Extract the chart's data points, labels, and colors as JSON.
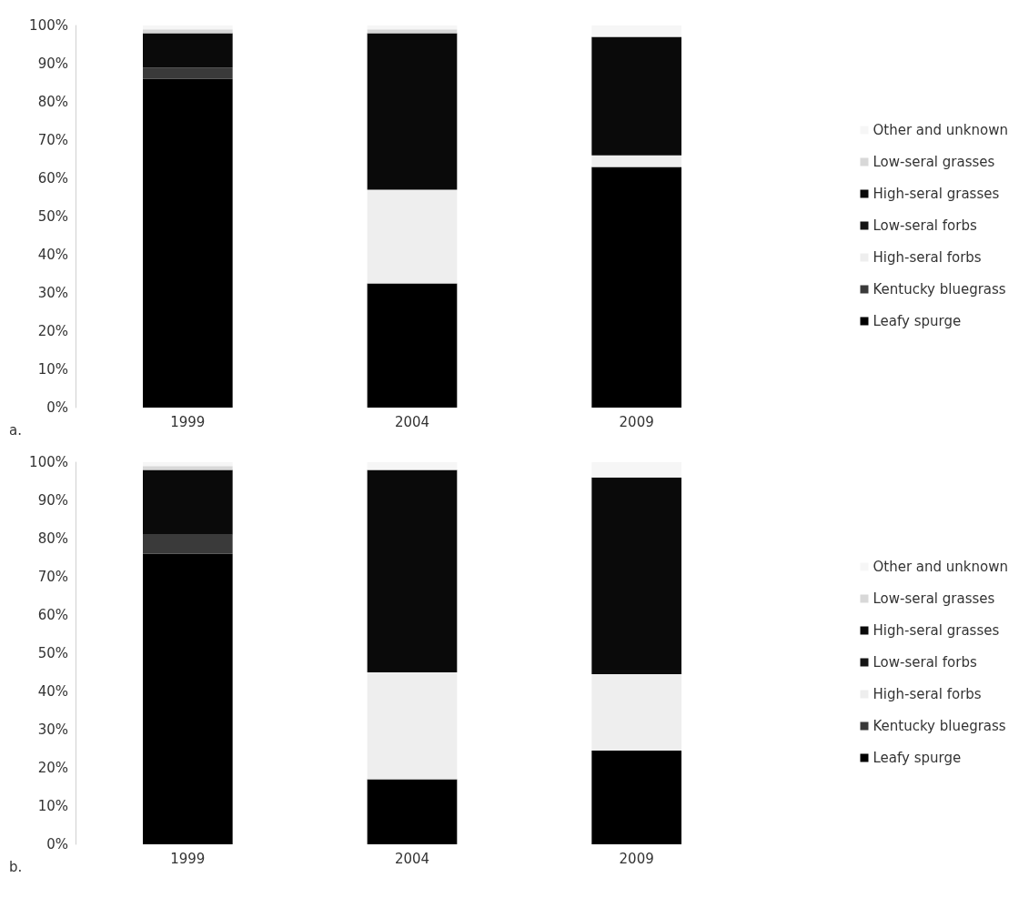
{
  "chart_data": [
    {
      "type": "bar",
      "stacked": true,
      "categories": [
        "1999",
        "2004",
        "2009"
      ],
      "ylim": [
        0,
        100
      ],
      "yticks": [
        {
          "value": 0,
          "label": "0%"
        },
        {
          "value": 10,
          "label": "10%"
        },
        {
          "value": 20,
          "label": "20%"
        },
        {
          "value": 30,
          "label": "30%"
        },
        {
          "value": 40,
          "label": "40%"
        },
        {
          "value": 50,
          "label": "50%"
        },
        {
          "value": 60,
          "label": "60%"
        },
        {
          "value": 70,
          "label": "70%"
        },
        {
          "value": 80,
          "label": "80%"
        },
        {
          "value": 90,
          "label": "90%"
        },
        {
          "value": 100,
          "label": "100%"
        }
      ],
      "grid": false,
      "legend": "right",
      "annotations": [
        "a."
      ],
      "series": [
        {
          "name": "Leafy spurge",
          "color": "#000000",
          "values": [
            86,
            32.5,
            63
          ]
        },
        {
          "name": "Kentucky bluegrass",
          "color": "#3a3a3a",
          "values": [
            3,
            0,
            0
          ]
        },
        {
          "name": "High-seral forbs",
          "color": "#eeeeee",
          "values": [
            0,
            24.5,
            3
          ]
        },
        {
          "name": "Low-seral forbs",
          "color": "#151515",
          "values": [
            0,
            0,
            0
          ]
        },
        {
          "name": "High-seral grasses",
          "color": "#0a0a0a",
          "values": [
            9,
            41,
            31
          ]
        },
        {
          "name": "Low-seral grasses",
          "color": "#d8d8d8",
          "values": [
            1,
            1,
            0
          ]
        },
        {
          "name": "Other and unknown",
          "color": "#f6f6f6",
          "values": [
            1,
            1,
            3
          ]
        }
      ]
    },
    {
      "type": "bar",
      "stacked": true,
      "categories": [
        "1999",
        "2004",
        "2009"
      ],
      "ylim": [
        0,
        100
      ],
      "yticks": [
        {
          "value": 0,
          "label": "0%"
        },
        {
          "value": 10,
          "label": "10%"
        },
        {
          "value": 20,
          "label": "20%"
        },
        {
          "value": 30,
          "label": "30%"
        },
        {
          "value": 40,
          "label": "40%"
        },
        {
          "value": 50,
          "label": "50%"
        },
        {
          "value": 60,
          "label": "60%"
        },
        {
          "value": 70,
          "label": "70%"
        },
        {
          "value": 80,
          "label": "80%"
        },
        {
          "value": 90,
          "label": "90%"
        },
        {
          "value": 100,
          "label": "100%"
        }
      ],
      "grid": false,
      "legend": "right",
      "annotations": [
        "b."
      ],
      "series": [
        {
          "name": "Leafy spurge",
          "color": "#000000",
          "values": [
            76,
            17,
            24.5
          ]
        },
        {
          "name": "Kentucky bluegrass",
          "color": "#3a3a3a",
          "values": [
            5,
            0,
            0
          ]
        },
        {
          "name": "High-seral forbs",
          "color": "#eeeeee",
          "values": [
            0,
            28,
            20
          ]
        },
        {
          "name": "Low-seral forbs",
          "color": "#151515",
          "values": [
            0,
            0,
            0
          ]
        },
        {
          "name": "High-seral grasses",
          "color": "#0a0a0a",
          "values": [
            17,
            53,
            51.5
          ]
        },
        {
          "name": "Low-seral grasses",
          "color": "#d8d8d8",
          "values": [
            1,
            0,
            0
          ]
        },
        {
          "name": "Other and unknown",
          "color": "#f6f6f6",
          "values": [
            1,
            2,
            4
          ]
        }
      ]
    }
  ]
}
